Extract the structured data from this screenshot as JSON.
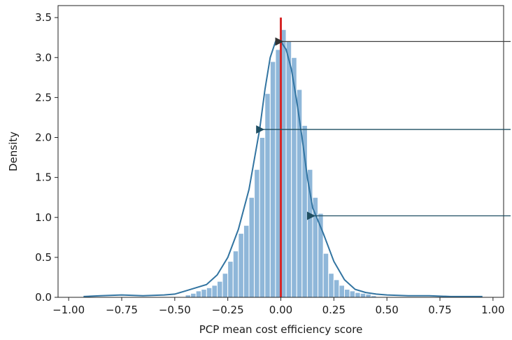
{
  "chart_data": {
    "type": "bar",
    "xlabel": "PCP mean cost efficiency score",
    "ylabel": "Density",
    "xlim": [
      -1.05,
      1.05
    ],
    "ylim": [
      0,
      3.65
    ],
    "x_ticks": [
      -1.0,
      -0.75,
      -0.5,
      -0.25,
      0.0,
      0.25,
      0.5,
      0.75,
      1.0
    ],
    "x_tick_labels": [
      "−1.00",
      "−0.75",
      "−0.50",
      "−0.25",
      "0.00",
      "0.25",
      "0.50",
      "0.75",
      "1.00"
    ],
    "y_ticks": [
      0.0,
      0.5,
      1.0,
      1.5,
      2.0,
      2.5,
      3.0,
      3.5
    ],
    "y_tick_labels": [
      "0.0",
      "0.5",
      "1.0",
      "1.5",
      "2.0",
      "2.5",
      "3.0",
      "3.5"
    ],
    "grid": false,
    "histogram": {
      "bin_edges": [
        -0.45,
        -0.425,
        -0.4,
        -0.375,
        -0.35,
        -0.325,
        -0.3,
        -0.275,
        -0.25,
        -0.225,
        -0.2,
        -0.175,
        -0.15,
        -0.125,
        -0.1,
        -0.075,
        -0.05,
        -0.025,
        0.0,
        0.025,
        0.05,
        0.075,
        0.1,
        0.125,
        0.15,
        0.175,
        0.2,
        0.225,
        0.25,
        0.275,
        0.3,
        0.325,
        0.35,
        0.375,
        0.4,
        0.425,
        0.45
      ],
      "densities": [
        0.03,
        0.05,
        0.08,
        0.1,
        0.12,
        0.15,
        0.2,
        0.3,
        0.45,
        0.58,
        0.8,
        0.9,
        1.25,
        1.6,
        2.0,
        2.55,
        2.95,
        3.1,
        3.35,
        3.2,
        3.0,
        2.6,
        2.15,
        1.6,
        1.25,
        1.05,
        0.55,
        0.3,
        0.22,
        0.15,
        0.1,
        0.08,
        0.06,
        0.05,
        0.04,
        0.02
      ],
      "color": "#8fb7d9"
    },
    "kde_line": {
      "x": [
        -0.93,
        -0.85,
        -0.75,
        -0.65,
        -0.55,
        -0.5,
        -0.45,
        -0.4,
        -0.35,
        -0.3,
        -0.25,
        -0.2,
        -0.15,
        -0.1,
        -0.075,
        -0.05,
        -0.025,
        0.0,
        0.025,
        0.05,
        0.075,
        0.1,
        0.125,
        0.15,
        0.2,
        0.25,
        0.3,
        0.35,
        0.4,
        0.45,
        0.5,
        0.6,
        0.7,
        0.8,
        0.9,
        0.95
      ],
      "y": [
        0.01,
        0.02,
        0.03,
        0.02,
        0.03,
        0.04,
        0.08,
        0.12,
        0.16,
        0.28,
        0.5,
        0.85,
        1.35,
        2.1,
        2.6,
        3.0,
        3.2,
        3.2,
        3.1,
        2.85,
        2.45,
        2.0,
        1.5,
        1.12,
        0.8,
        0.45,
        0.22,
        0.1,
        0.06,
        0.04,
        0.03,
        0.02,
        0.02,
        0.01,
        0.01,
        0.01
      ],
      "color": "#3274a1"
    },
    "reference_line": {
      "x": 0.0,
      "y_top": 3.5,
      "color": "#d62728"
    },
    "annotations": [
      {
        "type": "arrow",
        "target": [
          0.0,
          3.2
        ],
        "color": "#404040"
      },
      {
        "type": "arrow",
        "target": [
          -0.09,
          2.1
        ],
        "color": "#1f4e62"
      },
      {
        "type": "arrow",
        "target": [
          0.15,
          1.02
        ],
        "color": "#1f4e62"
      }
    ]
  }
}
